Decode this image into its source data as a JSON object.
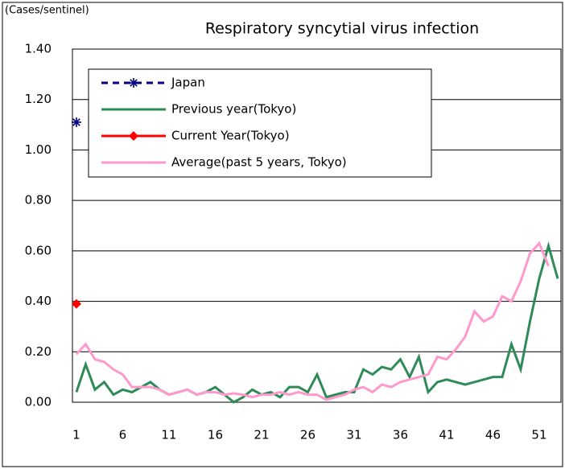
{
  "chart_data": {
    "type": "line",
    "title": "Respiratory syncytial virus infection",
    "y_label": "(Cases/sentinel)",
    "x": [
      1,
      2,
      3,
      4,
      5,
      6,
      7,
      8,
      9,
      10,
      11,
      12,
      13,
      14,
      15,
      16,
      17,
      18,
      19,
      20,
      21,
      22,
      23,
      24,
      25,
      26,
      27,
      28,
      29,
      30,
      31,
      32,
      33,
      34,
      35,
      36,
      37,
      38,
      39,
      40,
      41,
      42,
      43,
      44,
      45,
      46,
      47,
      48,
      49,
      50,
      51,
      52,
      53
    ],
    "xlim": [
      0.57,
      53.35
    ],
    "xticks": [
      1,
      6,
      11,
      16,
      21,
      26,
      31,
      36,
      41,
      46,
      51
    ],
    "ylim": [
      0,
      1.4
    ],
    "yticks": [
      {
        "value": 0,
        "label": "0.00"
      },
      {
        "value": 0.2,
        "label": "0.20"
      },
      {
        "value": 0.4,
        "label": "0.40"
      },
      {
        "value": 0.6,
        "label": "0.60"
      },
      {
        "value": 0.8,
        "label": "0.80"
      },
      {
        "value": 1.0,
        "label": "1.00"
      },
      {
        "value": 1.2,
        "label": "1.20"
      },
      {
        "value": 1.4,
        "label": "1.40"
      }
    ],
    "grid": true,
    "legend": "upper left",
    "series": [
      {
        "name": "Japan",
        "color": "#000080",
        "marker": "star",
        "dash": true,
        "values": [
          1.11,
          null,
          null,
          null,
          null,
          null,
          null,
          null,
          null,
          null,
          null,
          null,
          null,
          null,
          null,
          null,
          null,
          null,
          null,
          null,
          null,
          null,
          null,
          null,
          null,
          null,
          null,
          null,
          null,
          null,
          null,
          null,
          null,
          null,
          null,
          null,
          null,
          null,
          null,
          null,
          null,
          null,
          null,
          null,
          null,
          null,
          null,
          null,
          null,
          null,
          null,
          null,
          null
        ]
      },
      {
        "name": "Previous year(Tokyo)",
        "color": "#2e8b57",
        "marker": null,
        "dash": false,
        "values": [
          0.04,
          0.15,
          0.05,
          0.08,
          0.03,
          0.05,
          0.04,
          0.06,
          0.08,
          0.05,
          0.03,
          0.04,
          0.05,
          0.03,
          0.04,
          0.06,
          0.03,
          0.0,
          0.02,
          0.05,
          0.03,
          0.04,
          0.02,
          0.06,
          0.06,
          0.04,
          0.11,
          0.02,
          0.03,
          0.04,
          0.04,
          0.13,
          0.11,
          0.14,
          0.13,
          0.17,
          0.1,
          0.18,
          0.04,
          0.08,
          0.09,
          0.08,
          0.07,
          0.08,
          0.09,
          0.1,
          0.1,
          0.23,
          0.13,
          0.32,
          0.49,
          0.62,
          0.49
        ]
      },
      {
        "name": "Current Year(Tokyo)",
        "color": "#ff0000",
        "marker": "diamond",
        "dash": false,
        "values": [
          0.39,
          null,
          null,
          null,
          null,
          null,
          null,
          null,
          null,
          null,
          null,
          null,
          null,
          null,
          null,
          null,
          null,
          null,
          null,
          null,
          null,
          null,
          null,
          null,
          null,
          null,
          null,
          null,
          null,
          null,
          null,
          null,
          null,
          null,
          null,
          null,
          null,
          null,
          null,
          null,
          null,
          null,
          null,
          null,
          null,
          null,
          null,
          null,
          null,
          null,
          null,
          null,
          null
        ]
      },
      {
        "name": "Average(past 5 years, Tokyo)",
        "color": "#ff99cc",
        "marker": null,
        "dash": false,
        "values": [
          0.19,
          0.23,
          0.17,
          0.16,
          0.13,
          0.11,
          0.06,
          0.06,
          0.06,
          0.05,
          0.03,
          0.04,
          0.05,
          0.03,
          0.04,
          0.04,
          0.03,
          0.035,
          0.03,
          0.02,
          0.03,
          0.03,
          0.04,
          0.03,
          0.04,
          0.03,
          0.03,
          0.01,
          0.02,
          0.03,
          0.05,
          0.06,
          0.04,
          0.07,
          0.06,
          0.08,
          0.09,
          0.1,
          0.11,
          0.18,
          0.17,
          0.21,
          0.26,
          0.36,
          0.32,
          0.34,
          0.42,
          0.4,
          0.48,
          0.59,
          0.63,
          0.54,
          null
        ]
      }
    ]
  }
}
